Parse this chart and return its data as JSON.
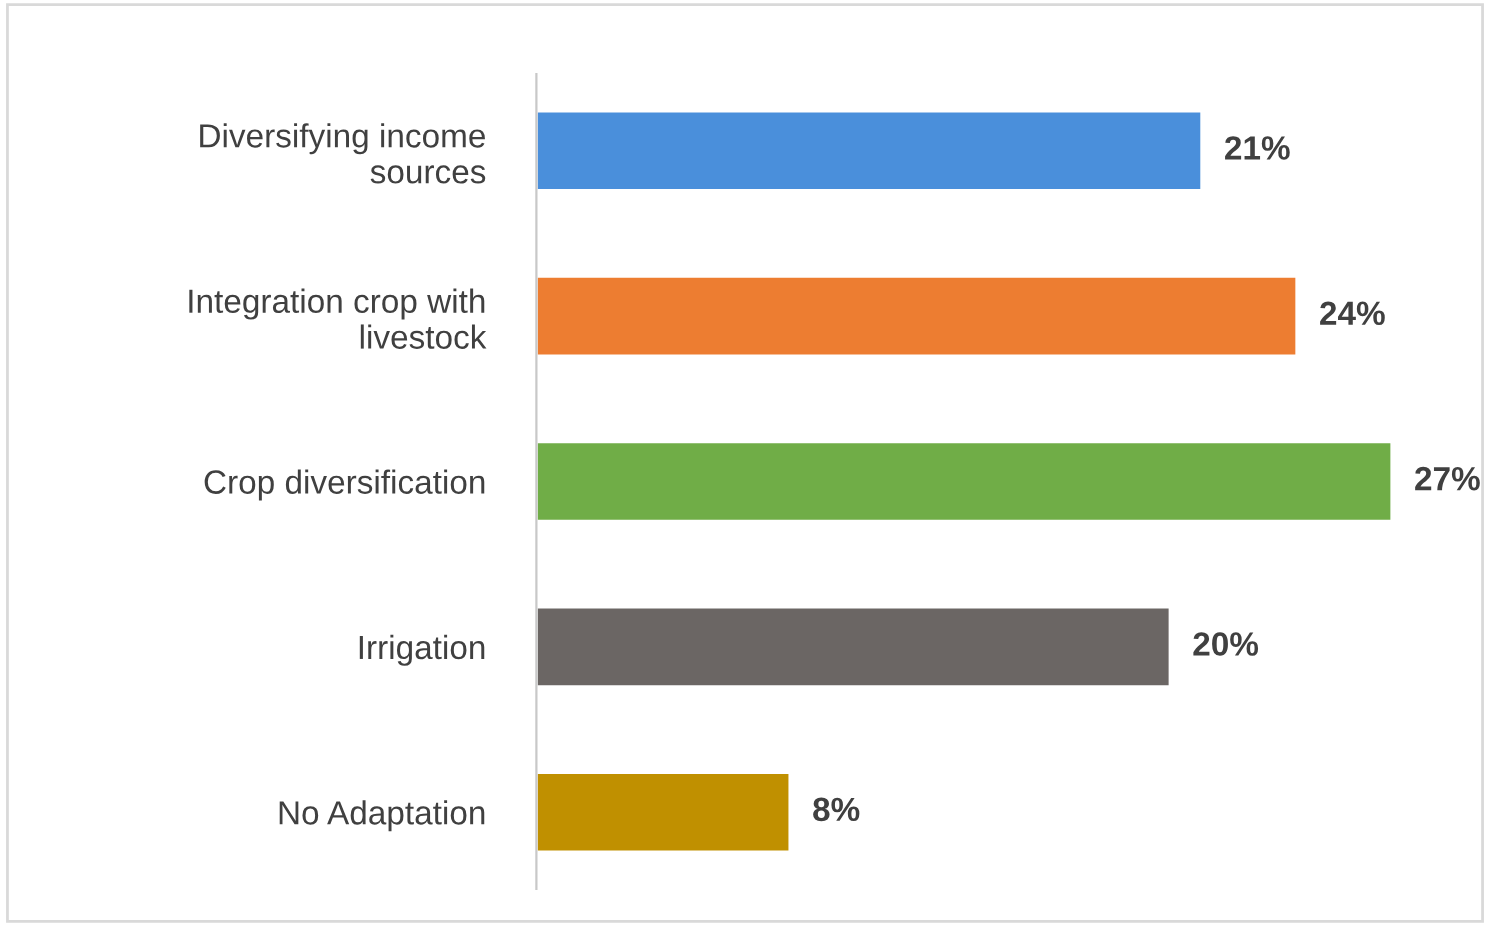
{
  "chart_data": {
    "type": "bar",
    "orientation": "horizontal",
    "categories": [
      "Diversifying income\nsources",
      "Integration crop with\nlivestock",
      "Crop diversification",
      "Irrigation",
      "No Adaptation"
    ],
    "values": [
      21,
      24,
      27,
      20,
      8
    ],
    "colors": [
      "#4a8fdb",
      "#ed7d31",
      "#70ad47",
      "#6b6664",
      "#c09000"
    ],
    "value_labels": [
      "21%",
      "24%",
      "27%",
      "20%",
      "8%"
    ],
    "grid": false,
    "legend": false
  }
}
